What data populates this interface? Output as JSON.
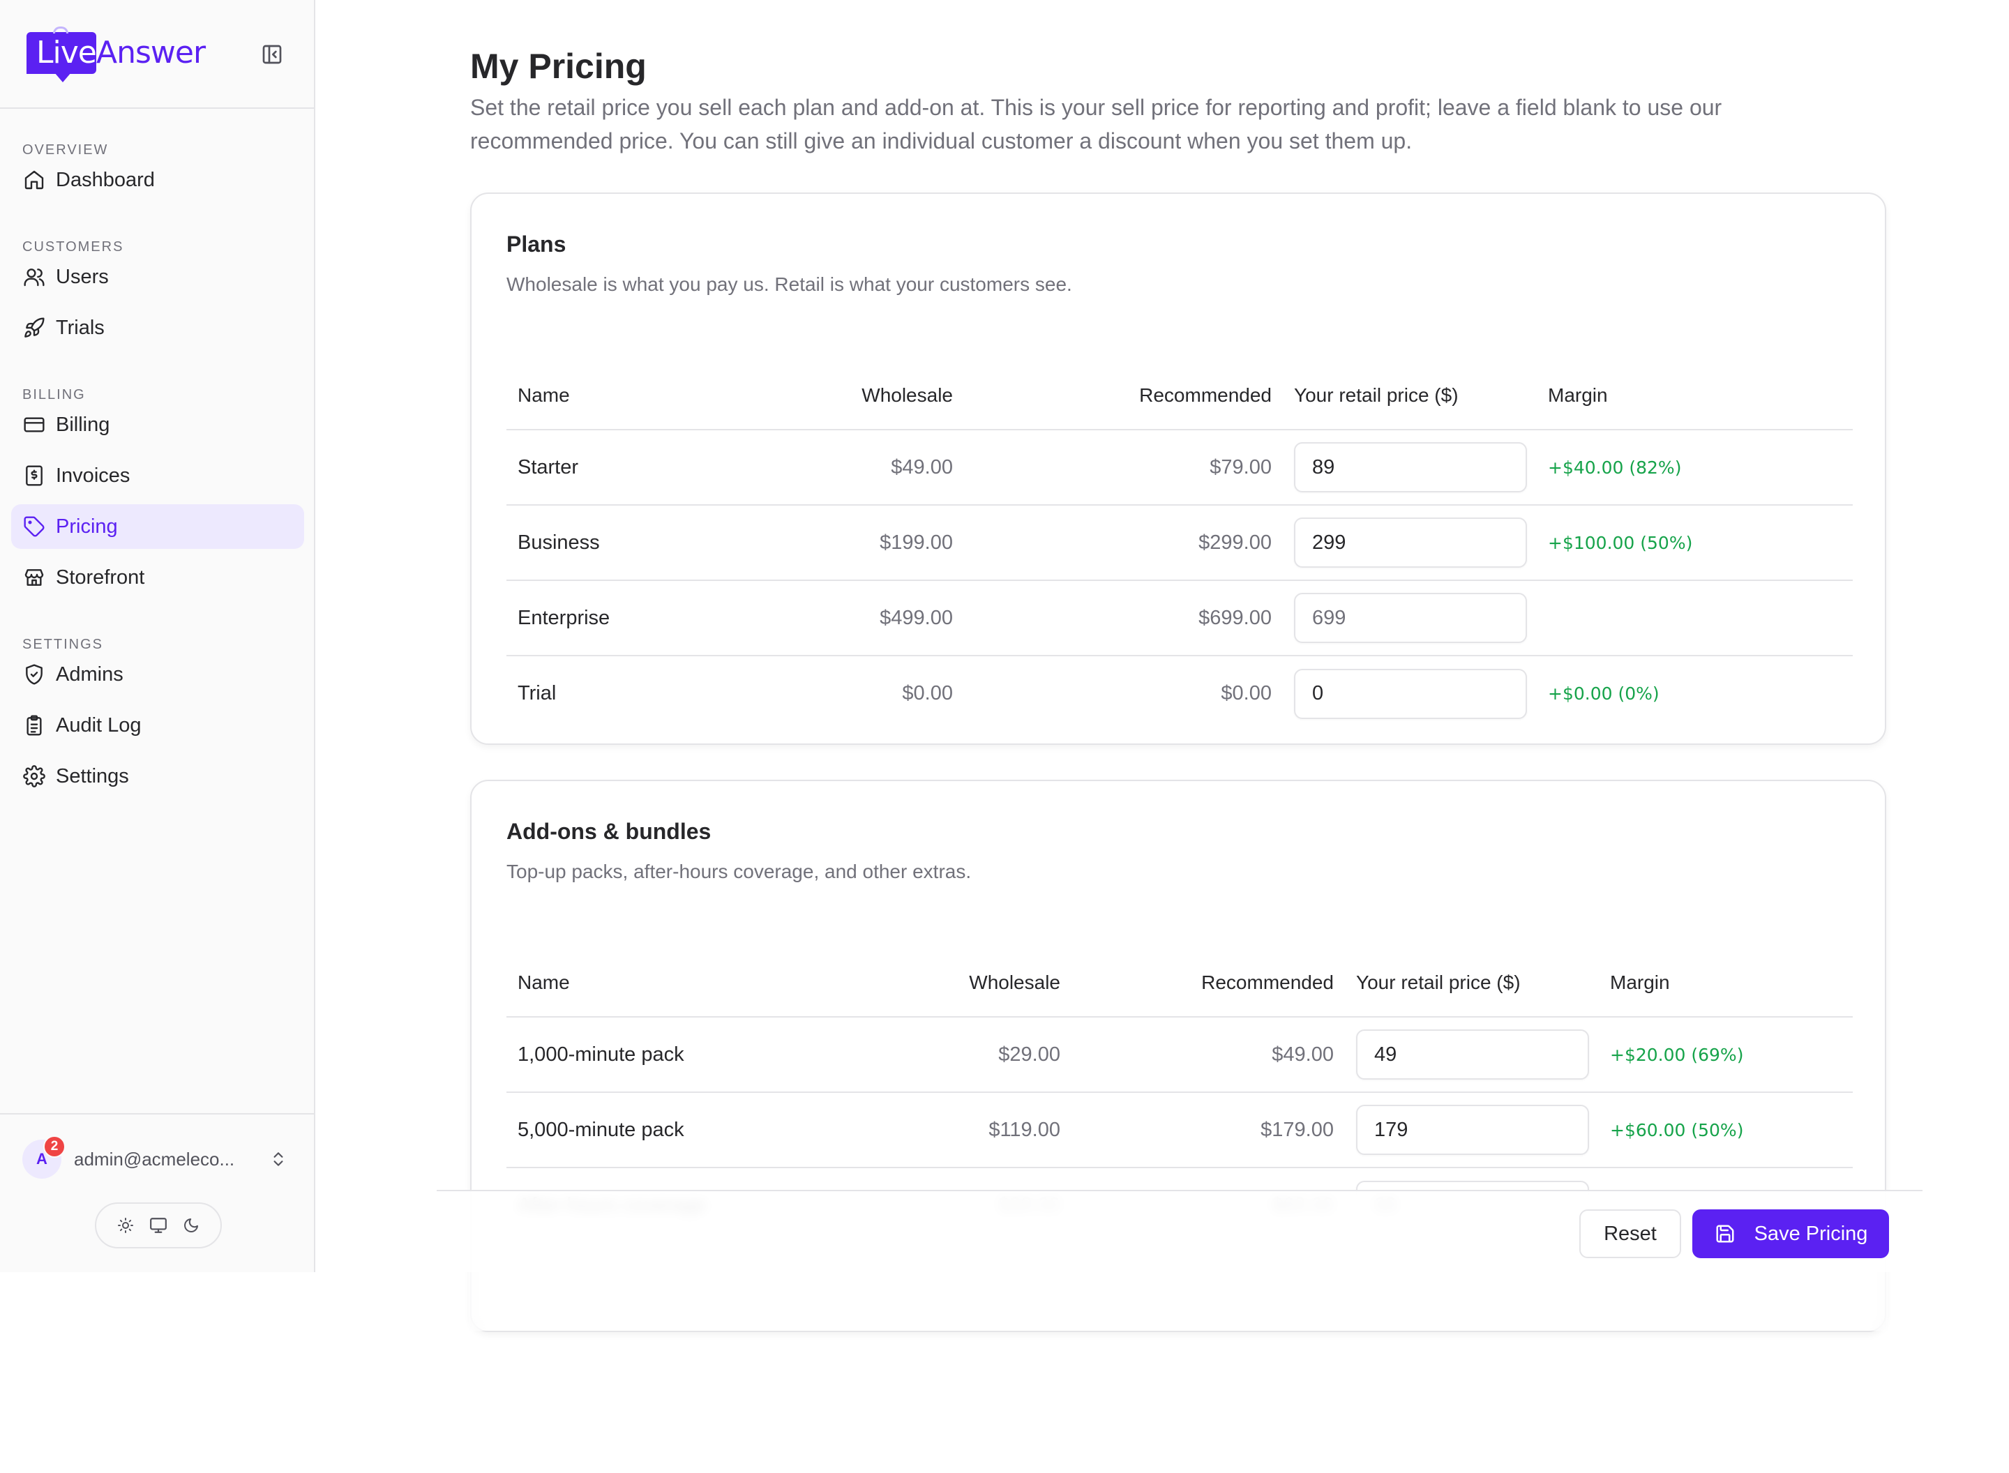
{
  "brand": {
    "name_part1": "Live",
    "name_part2": "Answer"
  },
  "sidebar": {
    "sections": [
      {
        "label": "OVERVIEW",
        "items": [
          {
            "label": "Dashboard",
            "icon": "home-icon"
          }
        ]
      },
      {
        "label": "CUSTOMERS",
        "items": [
          {
            "label": "Users",
            "icon": "users-icon"
          },
          {
            "label": "Trials",
            "icon": "rocket-icon"
          }
        ]
      },
      {
        "label": "BILLING",
        "items": [
          {
            "label": "Billing",
            "icon": "credit-card-icon"
          },
          {
            "label": "Invoices",
            "icon": "receipt-icon"
          },
          {
            "label": "Pricing",
            "icon": "tag-icon",
            "active": true
          },
          {
            "label": "Storefront",
            "icon": "store-icon"
          }
        ]
      },
      {
        "label": "SETTINGS",
        "items": [
          {
            "label": "Admins",
            "icon": "shield-icon"
          },
          {
            "label": "Audit Log",
            "icon": "clipboard-icon"
          },
          {
            "label": "Settings",
            "icon": "gear-icon"
          }
        ]
      }
    ],
    "user": {
      "initial": "A",
      "badge_count": "2",
      "email": "admin@acmeleco..."
    }
  },
  "main": {
    "title": "My Pricing",
    "description": "Set the retail price you sell each plan and add-on at. This is your sell price for reporting and profit; leave a field blank to use our recommended price. You can still give an individual customer a discount when you set them up.",
    "columns": {
      "name": "Name",
      "wholesale": "Wholesale",
      "recommended": "Recommended",
      "retail": "Your retail price ($)",
      "margin": "Margin"
    },
    "plans": {
      "title": "Plans",
      "subtitle": "Wholesale is what you pay us. Retail is what your customers see.",
      "rows": [
        {
          "name": "Starter",
          "wholesale": "$49.00",
          "recommended": "$79.00",
          "retail_value": "89",
          "retail_placeholder": "79",
          "margin": "+$40.00 (82%)"
        },
        {
          "name": "Business",
          "wholesale": "$199.00",
          "recommended": "$299.00",
          "retail_value": "299",
          "retail_placeholder": "299",
          "margin": "+$100.00 (50%)"
        },
        {
          "name": "Enterprise",
          "wholesale": "$499.00",
          "recommended": "$699.00",
          "retail_value": "",
          "retail_placeholder": "699",
          "margin": ""
        },
        {
          "name": "Trial",
          "wholesale": "$0.00",
          "recommended": "$0.00",
          "retail_value": "0",
          "retail_placeholder": "0",
          "margin": "+$0.00 (0%)"
        }
      ]
    },
    "addons": {
      "title": "Add-ons & bundles",
      "subtitle": "Top-up packs, after-hours coverage, and other extras.",
      "rows": [
        {
          "name": "1,000-minute pack",
          "wholesale": "$29.00",
          "recommended": "$49.00",
          "retail_value": "49",
          "retail_placeholder": "49",
          "margin": "+$20.00 (69%)"
        },
        {
          "name": "5,000-minute pack",
          "wholesale": "$119.00",
          "recommended": "$179.00",
          "retail_value": "179",
          "retail_placeholder": "179",
          "margin": "+$60.00 (50%)"
        },
        {
          "name": "After-hours coverage",
          "wholesale": "$39.00",
          "recommended": "$69.00",
          "retail_value": "",
          "retail_placeholder": "69",
          "margin": ""
        }
      ]
    },
    "actions": {
      "reset_label": "Reset",
      "save_label": "Save Pricing"
    }
  },
  "colors": {
    "accent": "#5b21f2",
    "accent_bg": "#ede9fe",
    "positive": "#16a34a",
    "badge": "#ef4444"
  }
}
